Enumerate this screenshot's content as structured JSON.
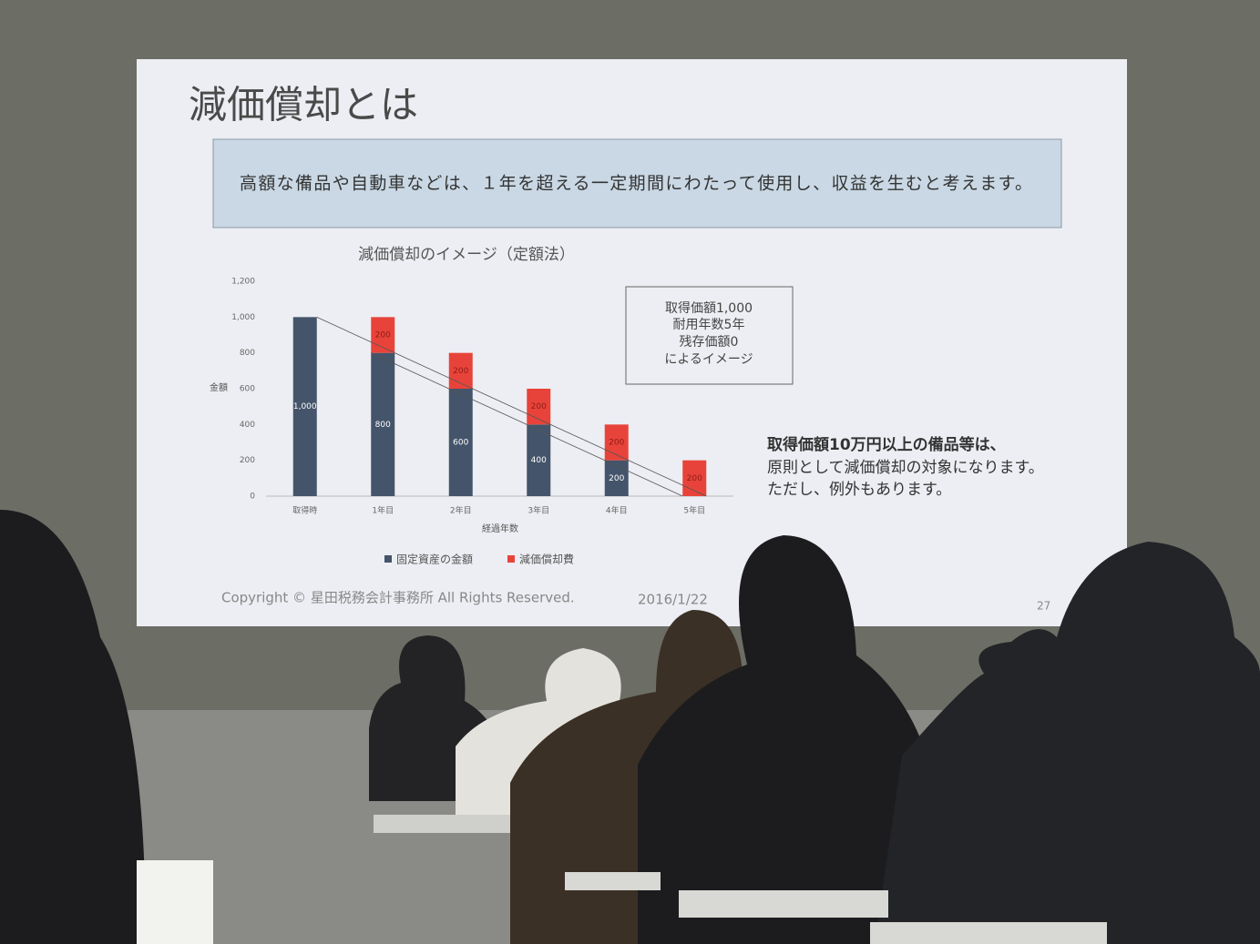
{
  "slide": {
    "title": "減価償却とは",
    "banner": "高額な備品や自動車などは、１年を超える一定期間にわたって使用し、収益を生むと考えます。",
    "note_box": [
      "取得価額1,000",
      "耐用年数5年",
      "残存価額0",
      "によるイメージ"
    ],
    "side_text": [
      "取得価額10万円以上の備品等は、",
      "原則として減価償却の対象になります。",
      "ただし、例外もあります。"
    ],
    "footer": {
      "copyright": "Copyright © 星田税務会計事務所 All Rights Reserved.",
      "date": "2016/1/22",
      "page": "27"
    }
  },
  "chart_data": {
    "type": "stacked_bar",
    "title": "減価償却のイメージ（定額法）",
    "x_label": "経過年数",
    "y_label": "金額",
    "categories": [
      "取得時",
      "1年目",
      "2年目",
      "3年目",
      "4年目",
      "5年目"
    ],
    "series": [
      {
        "name": "固定資産の金額",
        "color": "#44546a",
        "values": [
          1000,
          800,
          600,
          400,
          200,
          0
        ],
        "value_labels": [
          "1,000",
          "800",
          "600",
          "400",
          "200",
          null
        ]
      },
      {
        "name": "減価償却費",
        "color": "#e8433a",
        "values": [
          null,
          200,
          200,
          200,
          200,
          200
        ]
      }
    ],
    "ylim": [
      0,
      1200
    ],
    "yticks": [
      0,
      200,
      400,
      600,
      800,
      {
        "value": 1000,
        "label": "1,000"
      },
      {
        "value": 1200,
        "label": "1,200"
      }
    ],
    "legend": "bottom"
  }
}
